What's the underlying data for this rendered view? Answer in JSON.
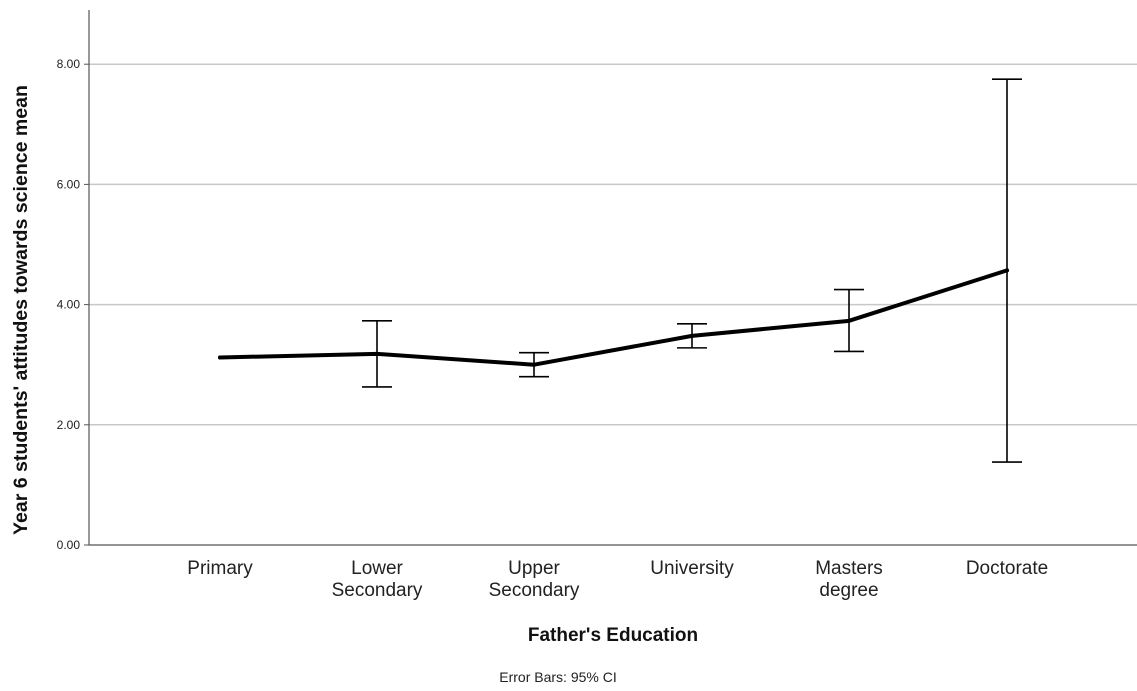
{
  "chart_data": {
    "type": "line",
    "title": "",
    "xlabel": "Father's Education",
    "ylabel": "Year 6 students' attitudes towards science mean",
    "footnote": "Error Bars: 95% CI",
    "ylim": [
      0,
      8.8
    ],
    "yticks": [
      "0.00",
      "2.00",
      "4.00",
      "6.00",
      "8.00"
    ],
    "grid": true,
    "categories": [
      [
        "Primary"
      ],
      [
        "Lower",
        "Secondary"
      ],
      [
        "Upper",
        "Secondary"
      ],
      [
        "University"
      ],
      [
        "Masters",
        "degree"
      ],
      [
        "Doctorate"
      ]
    ],
    "series": [
      {
        "values": [
          3.12,
          3.18,
          3.0,
          3.48,
          3.73,
          4.57
        ],
        "error_low": [
          null,
          2.63,
          2.8,
          3.28,
          3.22,
          1.38
        ],
        "error_high": [
          null,
          3.73,
          3.2,
          3.68,
          4.25,
          7.75
        ]
      }
    ],
    "colors": {
      "line": "#000000",
      "grid": "#c8c8c8",
      "axis": "#555555"
    }
  }
}
